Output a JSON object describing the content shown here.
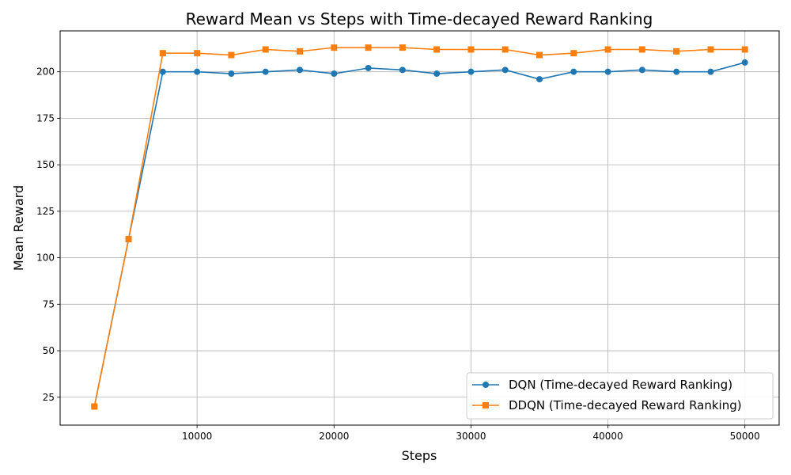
{
  "chart_data": {
    "type": "line",
    "title": "Reward Mean vs Steps with Time-decayed Reward Ranking",
    "xlabel": "Steps",
    "ylabel": "Mean Reward",
    "xlim": [
      0,
      52500
    ],
    "ylim": [
      10,
      222
    ],
    "xticks": [
      10000,
      20000,
      30000,
      40000,
      50000
    ],
    "yticks": [
      25,
      50,
      75,
      100,
      125,
      150,
      175,
      200
    ],
    "grid": true,
    "legend_position": "bottom-right",
    "x": [
      2500,
      5000,
      7500,
      10000,
      12500,
      15000,
      17500,
      20000,
      22500,
      25000,
      27500,
      30000,
      32500,
      35000,
      37500,
      40000,
      42500,
      45000,
      47500,
      50000
    ],
    "series": [
      {
        "name": "DQN (Time-decayed Reward Ranking)",
        "color": "#1f77b4",
        "marker": "circle",
        "values": [
          20,
          110,
          200,
          200,
          199,
          200,
          201,
          199,
          202,
          201,
          199,
          200,
          201,
          196,
          200,
          200,
          201,
          200,
          200,
          205
        ]
      },
      {
        "name": "DDQN (Time-decayed Reward Ranking)",
        "color": "#ff7f0e",
        "marker": "square",
        "values": [
          20,
          110,
          210,
          210,
          209,
          212,
          211,
          213,
          213,
          213,
          212,
          212,
          212,
          209,
          210,
          212,
          212,
          211,
          212,
          212
        ]
      }
    ]
  }
}
